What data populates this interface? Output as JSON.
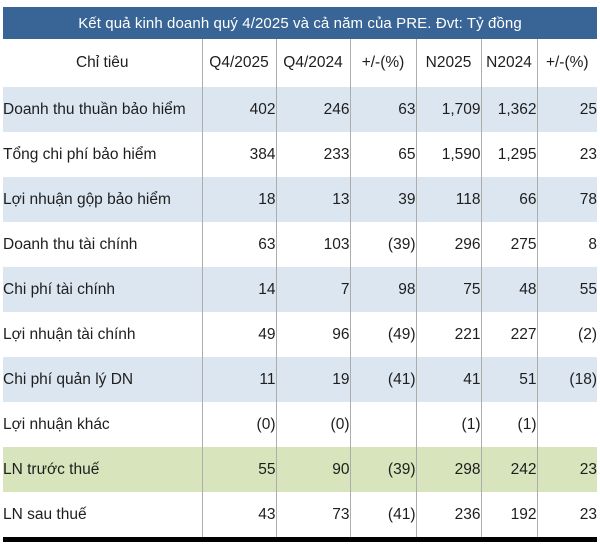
{
  "chart_data": {
    "type": "table",
    "title": "Kết quả kinh doanh quý 4/2025 và cả năm của PRE. Đvt: Tỷ đồng",
    "columns": [
      "Chỉ tiêu",
      "Q4/2025",
      "Q4/2024",
      "+/-(%)",
      "N2025",
      "N2024",
      "+/-(%)"
    ],
    "rows": [
      {
        "label": "Doanh thu thuần bảo hiểm",
        "values": [
          "402",
          "246",
          "63",
          "1,709",
          "1,362",
          "25"
        ],
        "highlight": "alt"
      },
      {
        "label": "Tổng chi phí bảo hiểm",
        "values": [
          "384",
          "233",
          "65",
          "1,590",
          "1,295",
          "23"
        ],
        "highlight": "plain"
      },
      {
        "label": "Lợi nhuận gộp  bảo hiểm",
        "values": [
          "18",
          "13",
          "39",
          "118",
          "66",
          "78"
        ],
        "highlight": "alt"
      },
      {
        "label": "Doanh thu tài chính",
        "values": [
          "63",
          "103",
          "(39)",
          "296",
          "275",
          "8"
        ],
        "highlight": "plain"
      },
      {
        "label": "Chi phí tài chính",
        "values": [
          "14",
          "7",
          "98",
          "75",
          "48",
          "55"
        ],
        "highlight": "alt"
      },
      {
        "label": "Lợi nhuận tài chính",
        "values": [
          "49",
          "96",
          "(49)",
          "221",
          "227",
          "(2)"
        ],
        "highlight": "plain"
      },
      {
        "label": "Chi phí quản lý DN",
        "values": [
          "11",
          "19",
          "(41)",
          "41",
          "51",
          "(18)"
        ],
        "highlight": "alt"
      },
      {
        "label": "Lợi nhuận khác",
        "values": [
          "(0)",
          "(0)",
          "",
          "(1)",
          "(1)",
          ""
        ],
        "highlight": "plain"
      },
      {
        "label": "LN trước thuế",
        "values": [
          "55",
          "90",
          "(39)",
          "298",
          "242",
          "23"
        ],
        "highlight": "green"
      },
      {
        "label": "LN sau thuế",
        "values": [
          "43",
          "73",
          "(41)",
          "236",
          "192",
          "23"
        ],
        "highlight": "plain"
      }
    ],
    "legend_position": "none",
    "grid": "vertical-only"
  },
  "colors": {
    "title_bar_bg": "#386596",
    "title_text": "#ffffff",
    "row_alt_bg": "#dce6f1",
    "row_highlight_bg": "#d8e4bc",
    "negative_value": "#ff0000",
    "divider": "#adadad",
    "bottom_rule": "#000000",
    "body_text": "#1e1e1e"
  }
}
